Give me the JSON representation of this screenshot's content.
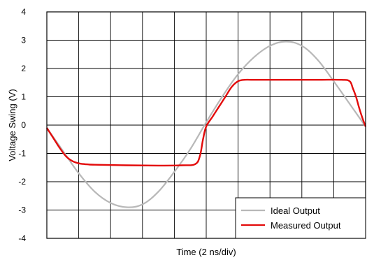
{
  "chart_data": {
    "type": "line",
    "xlabel": "Time (2 ns/div)",
    "ylabel": "Voltage Swing (V)",
    "ylim": [
      -4,
      4
    ],
    "xlim": [
      0,
      20
    ],
    "x_divisions": 10,
    "y_ticks": [
      "4",
      "3",
      "2",
      "1",
      "0",
      "-1",
      "-2",
      "-3",
      "-4"
    ],
    "grid": true,
    "legend_position": "bottom-right",
    "series": [
      {
        "name": "Ideal Output",
        "color": "#b8b8b8",
        "x": [
          0,
          1,
          2,
          3,
          4,
          5,
          6,
          7,
          8,
          9,
          10,
          11,
          12,
          13,
          14,
          15,
          16,
          17,
          18,
          19,
          20
        ],
        "y": [
          -0.1,
          -0.9,
          -1.7,
          -2.35,
          -2.75,
          -2.9,
          -2.8,
          -2.35,
          -1.65,
          -0.85,
          0.1,
          1.0,
          1.8,
          2.4,
          2.8,
          2.95,
          2.8,
          2.3,
          1.55,
          0.75,
          -0.05
        ]
      },
      {
        "name": "Measured Output",
        "color": "#e30b0b",
        "x": [
          0,
          0.4,
          0.8,
          1.2,
          1.6,
          2.0,
          2.4,
          3.0,
          5.0,
          7.0,
          8.5,
          9.3,
          9.6,
          9.8,
          10.0,
          10.4,
          10.8,
          11.2,
          11.6,
          12.0,
          12.4,
          13.0,
          15.0,
          17.0,
          18.5,
          19.0,
          19.2,
          19.4,
          19.6,
          19.8,
          20.0
        ],
        "y": [
          -0.1,
          -0.45,
          -0.8,
          -1.1,
          -1.27,
          -1.35,
          -1.38,
          -1.4,
          -1.42,
          -1.43,
          -1.42,
          -1.38,
          -1.1,
          -0.5,
          -0.05,
          0.3,
          0.65,
          1.0,
          1.35,
          1.55,
          1.6,
          1.6,
          1.6,
          1.6,
          1.6,
          1.55,
          1.3,
          1.0,
          0.6,
          0.25,
          -0.05
        ]
      }
    ]
  }
}
